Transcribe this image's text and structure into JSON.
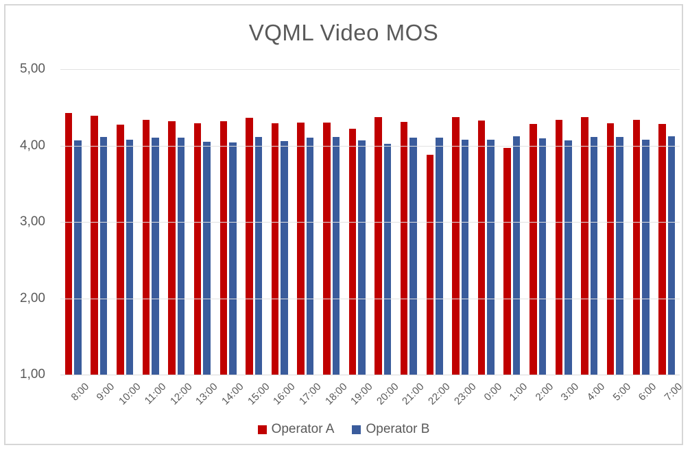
{
  "chart_data": {
    "type": "bar",
    "title": "VQML Video MOS",
    "categories": [
      "8:00",
      "9:00",
      "10:00",
      "11:00",
      "12:00",
      "13:00",
      "14:00",
      "15:00",
      "16:00",
      "17:00",
      "18:00",
      "19:00",
      "20:00",
      "21:00",
      "22:00",
      "23:00",
      "0:00",
      "1:00",
      "2:00",
      "3:00",
      "4:00",
      "5:00",
      "6:00",
      "7:00"
    ],
    "series": [
      {
        "name": "Operator A",
        "color": "#C00000",
        "values": [
          4.43,
          4.39,
          4.27,
          4.34,
          4.32,
          4.29,
          4.32,
          4.36,
          4.29,
          4.3,
          4.3,
          4.22,
          4.37,
          4.31,
          3.88,
          4.37,
          4.33,
          3.97,
          4.28,
          4.34,
          4.37,
          4.29,
          4.34,
          4.28
        ]
      },
      {
        "name": "Operator B",
        "color": "#3A5C9C",
        "values": [
          4.07,
          4.11,
          4.08,
          4.1,
          4.1,
          4.05,
          4.04,
          4.11,
          4.06,
          4.1,
          4.11,
          4.07,
          4.02,
          4.1,
          4.1,
          4.08,
          4.08,
          4.12,
          4.09,
          4.07,
          4.11,
          4.11,
          4.08,
          4.12
        ]
      }
    ],
    "ylim": [
      1,
      5
    ],
    "y_ticks": [
      {
        "label": "5,00",
        "value": 5
      },
      {
        "label": "4,00",
        "value": 4
      },
      {
        "label": "3,00",
        "value": 3
      },
      {
        "label": "2,00",
        "value": 2
      },
      {
        "label": "1,00",
        "value": 1
      }
    ],
    "decimal_separator": ",",
    "grid": true,
    "legend_position": "bottom",
    "colors": {
      "gridline": "#e2e2e2",
      "axis_line": "#d9d9d9",
      "text": "#595959"
    }
  }
}
